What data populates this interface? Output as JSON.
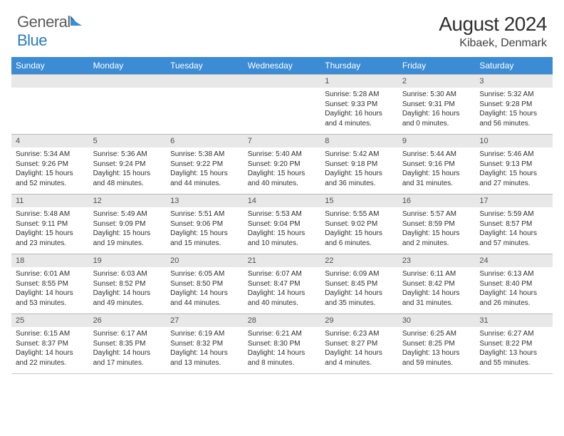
{
  "brand": {
    "g": "General",
    "b": "Blue"
  },
  "title": {
    "month_year": "August 2024",
    "location": "Kibaek, Denmark"
  },
  "colors": {
    "header_bg": "#3b8cd4",
    "daynum_bg": "#e8e8e8",
    "rule": "#b8b8b8",
    "text": "#303030",
    "brand_gray": "#5a5a5a",
    "brand_blue": "#2a7bbf"
  },
  "day_headers": [
    "Sunday",
    "Monday",
    "Tuesday",
    "Wednesday",
    "Thursday",
    "Friday",
    "Saturday"
  ],
  "weeks": [
    [
      {
        "n": "",
        "sr": "",
        "ss": "",
        "dl": ""
      },
      {
        "n": "",
        "sr": "",
        "ss": "",
        "dl": ""
      },
      {
        "n": "",
        "sr": "",
        "ss": "",
        "dl": ""
      },
      {
        "n": "",
        "sr": "",
        "ss": "",
        "dl": ""
      },
      {
        "n": "1",
        "sr": "Sunrise: 5:28 AM",
        "ss": "Sunset: 9:33 PM",
        "dl": "Daylight: 16 hours and 4 minutes."
      },
      {
        "n": "2",
        "sr": "Sunrise: 5:30 AM",
        "ss": "Sunset: 9:31 PM",
        "dl": "Daylight: 16 hours and 0 minutes."
      },
      {
        "n": "3",
        "sr": "Sunrise: 5:32 AM",
        "ss": "Sunset: 9:28 PM",
        "dl": "Daylight: 15 hours and 56 minutes."
      }
    ],
    [
      {
        "n": "4",
        "sr": "Sunrise: 5:34 AM",
        "ss": "Sunset: 9:26 PM",
        "dl": "Daylight: 15 hours and 52 minutes."
      },
      {
        "n": "5",
        "sr": "Sunrise: 5:36 AM",
        "ss": "Sunset: 9:24 PM",
        "dl": "Daylight: 15 hours and 48 minutes."
      },
      {
        "n": "6",
        "sr": "Sunrise: 5:38 AM",
        "ss": "Sunset: 9:22 PM",
        "dl": "Daylight: 15 hours and 44 minutes."
      },
      {
        "n": "7",
        "sr": "Sunrise: 5:40 AM",
        "ss": "Sunset: 9:20 PM",
        "dl": "Daylight: 15 hours and 40 minutes."
      },
      {
        "n": "8",
        "sr": "Sunrise: 5:42 AM",
        "ss": "Sunset: 9:18 PM",
        "dl": "Daylight: 15 hours and 36 minutes."
      },
      {
        "n": "9",
        "sr": "Sunrise: 5:44 AM",
        "ss": "Sunset: 9:16 PM",
        "dl": "Daylight: 15 hours and 31 minutes."
      },
      {
        "n": "10",
        "sr": "Sunrise: 5:46 AM",
        "ss": "Sunset: 9:13 PM",
        "dl": "Daylight: 15 hours and 27 minutes."
      }
    ],
    [
      {
        "n": "11",
        "sr": "Sunrise: 5:48 AM",
        "ss": "Sunset: 9:11 PM",
        "dl": "Daylight: 15 hours and 23 minutes."
      },
      {
        "n": "12",
        "sr": "Sunrise: 5:49 AM",
        "ss": "Sunset: 9:09 PM",
        "dl": "Daylight: 15 hours and 19 minutes."
      },
      {
        "n": "13",
        "sr": "Sunrise: 5:51 AM",
        "ss": "Sunset: 9:06 PM",
        "dl": "Daylight: 15 hours and 15 minutes."
      },
      {
        "n": "14",
        "sr": "Sunrise: 5:53 AM",
        "ss": "Sunset: 9:04 PM",
        "dl": "Daylight: 15 hours and 10 minutes."
      },
      {
        "n": "15",
        "sr": "Sunrise: 5:55 AM",
        "ss": "Sunset: 9:02 PM",
        "dl": "Daylight: 15 hours and 6 minutes."
      },
      {
        "n": "16",
        "sr": "Sunrise: 5:57 AM",
        "ss": "Sunset: 8:59 PM",
        "dl": "Daylight: 15 hours and 2 minutes."
      },
      {
        "n": "17",
        "sr": "Sunrise: 5:59 AM",
        "ss": "Sunset: 8:57 PM",
        "dl": "Daylight: 14 hours and 57 minutes."
      }
    ],
    [
      {
        "n": "18",
        "sr": "Sunrise: 6:01 AM",
        "ss": "Sunset: 8:55 PM",
        "dl": "Daylight: 14 hours and 53 minutes."
      },
      {
        "n": "19",
        "sr": "Sunrise: 6:03 AM",
        "ss": "Sunset: 8:52 PM",
        "dl": "Daylight: 14 hours and 49 minutes."
      },
      {
        "n": "20",
        "sr": "Sunrise: 6:05 AM",
        "ss": "Sunset: 8:50 PM",
        "dl": "Daylight: 14 hours and 44 minutes."
      },
      {
        "n": "21",
        "sr": "Sunrise: 6:07 AM",
        "ss": "Sunset: 8:47 PM",
        "dl": "Daylight: 14 hours and 40 minutes."
      },
      {
        "n": "22",
        "sr": "Sunrise: 6:09 AM",
        "ss": "Sunset: 8:45 PM",
        "dl": "Daylight: 14 hours and 35 minutes."
      },
      {
        "n": "23",
        "sr": "Sunrise: 6:11 AM",
        "ss": "Sunset: 8:42 PM",
        "dl": "Daylight: 14 hours and 31 minutes."
      },
      {
        "n": "24",
        "sr": "Sunrise: 6:13 AM",
        "ss": "Sunset: 8:40 PM",
        "dl": "Daylight: 14 hours and 26 minutes."
      }
    ],
    [
      {
        "n": "25",
        "sr": "Sunrise: 6:15 AM",
        "ss": "Sunset: 8:37 PM",
        "dl": "Daylight: 14 hours and 22 minutes."
      },
      {
        "n": "26",
        "sr": "Sunrise: 6:17 AM",
        "ss": "Sunset: 8:35 PM",
        "dl": "Daylight: 14 hours and 17 minutes."
      },
      {
        "n": "27",
        "sr": "Sunrise: 6:19 AM",
        "ss": "Sunset: 8:32 PM",
        "dl": "Daylight: 14 hours and 13 minutes."
      },
      {
        "n": "28",
        "sr": "Sunrise: 6:21 AM",
        "ss": "Sunset: 8:30 PM",
        "dl": "Daylight: 14 hours and 8 minutes."
      },
      {
        "n": "29",
        "sr": "Sunrise: 6:23 AM",
        "ss": "Sunset: 8:27 PM",
        "dl": "Daylight: 14 hours and 4 minutes."
      },
      {
        "n": "30",
        "sr": "Sunrise: 6:25 AM",
        "ss": "Sunset: 8:25 PM",
        "dl": "Daylight: 13 hours and 59 minutes."
      },
      {
        "n": "31",
        "sr": "Sunrise: 6:27 AM",
        "ss": "Sunset: 8:22 PM",
        "dl": "Daylight: 13 hours and 55 minutes."
      }
    ]
  ]
}
